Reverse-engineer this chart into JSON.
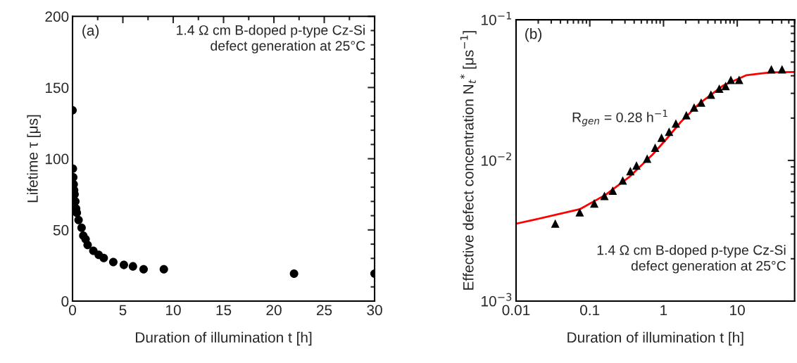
{
  "chart_data": [
    {
      "type": "scatter",
      "xlabel": "Duration of illumination t [h]",
      "ylabel": "Lifetime τ [μs]",
      "x": [
        0,
        0.034,
        0.073,
        0.115,
        0.158,
        0.205,
        0.28,
        0.355,
        0.43,
        0.6,
        0.9,
        1.07,
        1.3,
        1.5,
        2.07,
        2.6,
        3.1,
        4.05,
        5.1,
        6.0,
        7.06,
        9.07,
        22,
        30
      ],
      "series": [
        {
          "color": "#000000",
          "values": [
            134,
            93,
            87,
            82,
            78,
            75,
            70,
            65,
            62,
            57,
            51.5,
            46,
            43.5,
            39.4,
            35.3,
            32.5,
            30.3,
            27.4,
            25.4,
            24.4,
            22.4,
            22.4,
            19.3,
            19.3
          ]
        }
      ],
      "marker": "circle",
      "xlim": [
        0,
        30
      ],
      "xticks": [
        0,
        5,
        10,
        15,
        20,
        25,
        30
      ],
      "ylim": [
        0,
        200
      ],
      "yticks": [
        0,
        50,
        100,
        150,
        200
      ],
      "grid": false,
      "legend": false,
      "annotations": [
        "(a)",
        "1.4 Ω cm B-doped p-type Cz-Si\ndefect generation at 25°C"
      ]
    },
    {
      "type": "scatter",
      "xlabel": "Duration of illumination t [h]",
      "ylabel": "Effective defect concentration N$_{t}$$^{*}$ [μs$^{−1}$]",
      "series": [
        {
          "type": "scatter",
          "color": "#000000",
          "marker": "triangle",
          "x": [
            0.034,
            0.073,
            0.115,
            0.158,
            0.205,
            0.28,
            0.355,
            0.43,
            0.6,
            0.77,
            0.94,
            1.19,
            1.47,
            2.04,
            2.6,
            3.24,
            4.4,
            5.7,
            6.95,
            8.2,
            10.6,
            29,
            40.5
          ],
          "values": [
            0.00356,
            0.00428,
            0.00495,
            0.0056,
            0.0061,
            0.0072,
            0.0084,
            0.0092,
            0.0103,
            0.0123,
            0.0145,
            0.016,
            0.0183,
            0.021,
            0.0238,
            0.0258,
            0.0294,
            0.0324,
            0.0338,
            0.0374,
            0.0374,
            0.0445,
            0.0445
          ]
        },
        {
          "type": "line",
          "color": "#ff0000",
          "marker": "none",
          "x": [
            0.01,
            0.018,
            0.073,
            0.164,
            0.34,
            0.71,
            1.11,
            1.72,
            3.1,
            6.4,
            13.4,
            28,
            60
          ],
          "values": [
            0.00355,
            0.0038,
            0.0045,
            0.0057,
            0.0076,
            0.011,
            0.0143,
            0.0188,
            0.0255,
            0.034,
            0.0404,
            0.0423,
            0.0425
          ]
        }
      ],
      "log": "xy",
      "xlim": [
        0.01,
        60
      ],
      "xticks": [
        0.01,
        0.1,
        1,
        10
      ],
      "ylim": [
        0.001,
        0.1
      ],
      "yticks": [
        {
          "value": 0.001,
          "label": "10$^{−3}$"
        },
        {
          "value": 0.01,
          "label": "10$^{−2}$"
        },
        {
          "value": 0.1,
          "label": "10$^{−1}$"
        }
      ],
      "grid": false,
      "legend": false,
      "annotations": [
        "(b)",
        "R$_{gen}$ = 0.28 h$^{−1}$",
        "1.4 Ω cm B-doped p-type Cz-Si\ndefect generation at 25°C"
      ]
    }
  ]
}
